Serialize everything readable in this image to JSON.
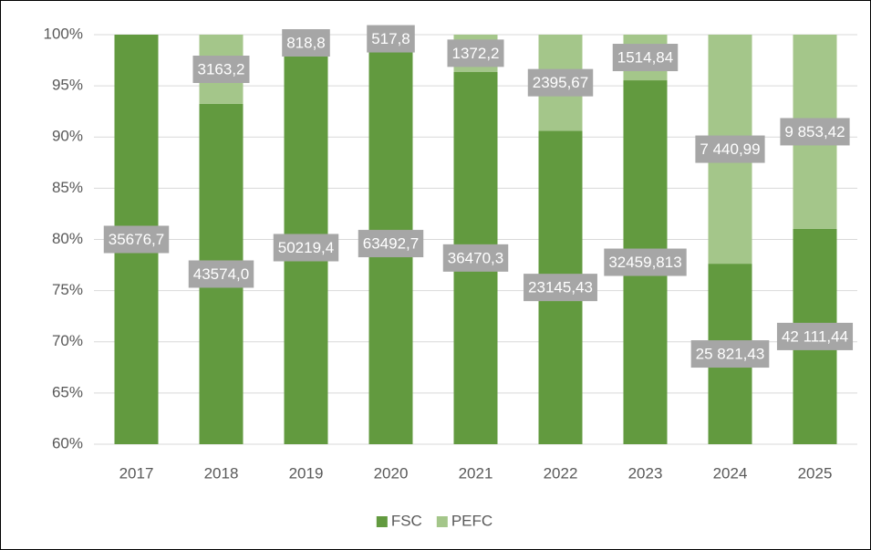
{
  "chart_data": {
    "type": "bar",
    "stacking": "percent",
    "categories": [
      "2017",
      "2018",
      "2019",
      "2020",
      "2021",
      "2022",
      "2023",
      "2024",
      "2025"
    ],
    "series": [
      {
        "name": "FSC",
        "color": "#629a3f",
        "values": [
          35676.7,
          43574.0,
          50219.4,
          63492.7,
          36470.3,
          23145.43,
          32459.813,
          25821.43,
          42111.44
        ],
        "value_labels": [
          "35676,7",
          "43574,0",
          "50219,4",
          "63492,7",
          "36470,3",
          "23145,43",
          "32459,813",
          "25 821,43",
          "42 111,44"
        ]
      },
      {
        "name": "PEFC",
        "color": "#a4c68a",
        "values": [
          null,
          3163.2,
          818.8,
          517.8,
          1372.2,
          2395.67,
          1514.84,
          7440.99,
          9853.42
        ],
        "value_labels": [
          null,
          "3163,2",
          "818,8",
          "517,8",
          "1372,2",
          "2395,67",
          "1514,84",
          "7 440,99",
          "9 853,42"
        ]
      }
    ],
    "ylim": [
      60,
      100
    ],
    "yticks": [
      {
        "value": 60,
        "label": "60%"
      },
      {
        "value": 65,
        "label": "65%"
      },
      {
        "value": 70,
        "label": "70%"
      },
      {
        "value": 75,
        "label": "75%"
      },
      {
        "value": 80,
        "label": "80%"
      },
      {
        "value": 85,
        "label": "85%"
      },
      {
        "value": 90,
        "label": "90%"
      },
      {
        "value": 95,
        "label": "95%"
      },
      {
        "value": 100,
        "label": "100%"
      }
    ],
    "grid": true,
    "legend": "bottom"
  }
}
